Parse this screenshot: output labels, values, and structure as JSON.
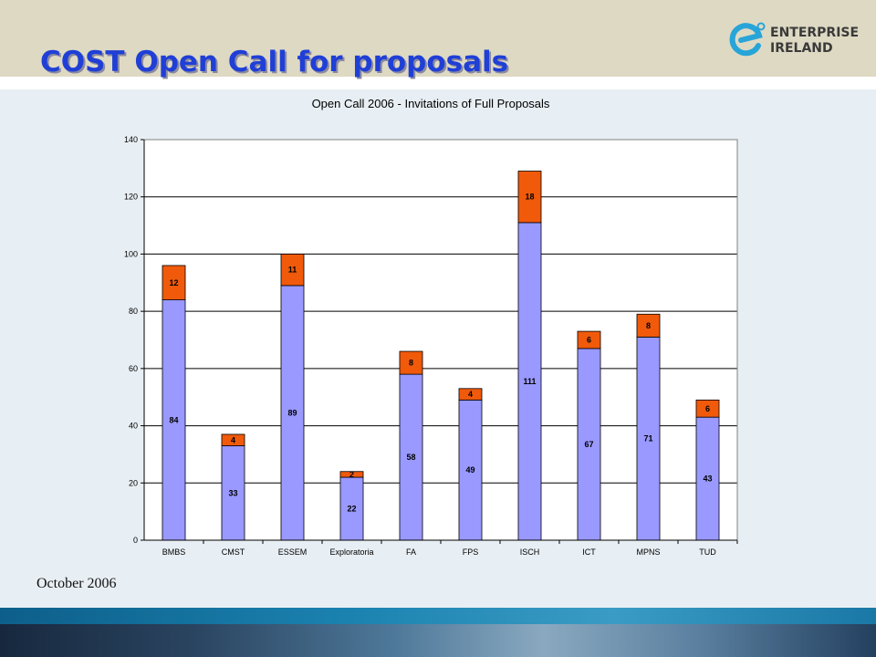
{
  "header": {
    "title": "COST Open Call for proposals",
    "logo_line1": "ENTERPRISE",
    "logo_line2": "IRELAND"
  },
  "footer": {
    "date": "October 2006"
  },
  "colors": {
    "lower_segment": "#9999ff",
    "upper_segment": "#f05a0a",
    "title_text": "#1f3fd6",
    "header_band": "#ded9c3",
    "logo_icon": "#27a5d8"
  },
  "chart_data": {
    "type": "bar",
    "stacked": true,
    "title": "Open Call 2006 - Invitations of Full Proposals",
    "xlabel": "",
    "ylabel": "",
    "ylim": [
      0,
      140
    ],
    "yticks": [
      0,
      20,
      40,
      60,
      80,
      100,
      120,
      140
    ],
    "grid": true,
    "legend": false,
    "categories": [
      "BMBS",
      "CMST",
      "ESSEM",
      "Exploratoria",
      "FA",
      "FPS",
      "ISCH",
      "ICT",
      "MPNS",
      "TUD"
    ],
    "series": [
      {
        "color": "#9999ff",
        "values": [
          84,
          33,
          89,
          22,
          58,
          49,
          111,
          67,
          71,
          43
        ]
      },
      {
        "color": "#f05a0a",
        "values": [
          12,
          4,
          11,
          2,
          8,
          4,
          18,
          6,
          8,
          6
        ]
      }
    ]
  }
}
